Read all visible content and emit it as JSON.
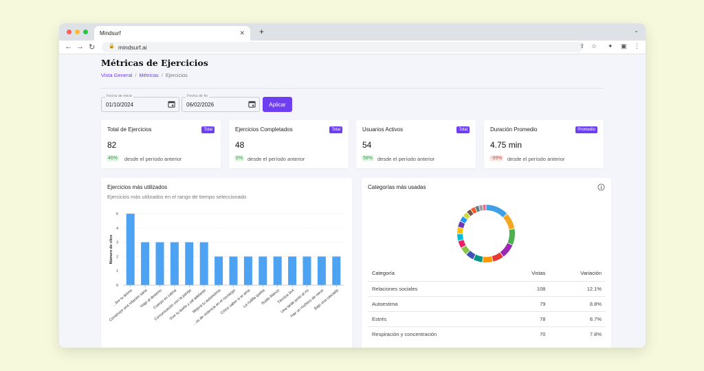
{
  "colors": {
    "accent": "#6d3ff0",
    "bar": "#4da3f2",
    "positive": "#2c9b43",
    "negative": "#d9433a",
    "background": "#f6f9dc"
  },
  "browser": {
    "tab_title": "Mindsurf",
    "url": "mindsurf.ai"
  },
  "page": {
    "title": "Métricas de Ejercicios",
    "breadcrumbs": [
      "Vista General",
      "Métricas",
      "Ejercicios"
    ]
  },
  "filters": {
    "start_label": "Fecha de inicio",
    "start_value": "01/10/2024",
    "end_label": "Fecha de fin",
    "end_value": "06/02/2026",
    "apply_label": "Aplicar"
  },
  "stats": [
    {
      "title": "Total de Ejercicios",
      "badge": "Total",
      "value": "82",
      "change": "46%",
      "trend": "up",
      "caption": "desde el período anterior"
    },
    {
      "title": "Ejercicios Completados",
      "badge": "Total",
      "value": "48",
      "change": "6%",
      "trend": "up",
      "caption": "desde el período anterior"
    },
    {
      "title": "Usuarios Activos",
      "badge": "Total",
      "value": "54",
      "change": "58%",
      "trend": "up",
      "caption": "desde el período anterior"
    },
    {
      "title": "Duración Promedio",
      "badge": "Promedio",
      "value": "4.75 min",
      "change": "-99%",
      "trend": "down",
      "caption": "desde el período anterior"
    }
  ],
  "bar_card": {
    "title": "Ejercicios más utilizados",
    "subtitle": "Ejercicios más utilizados en el rango de tiempo seleccionado"
  },
  "chart_data": {
    "type": "bar",
    "title": "Ejercicios más utilizados",
    "ylabel": "Número de clics",
    "xlabel": "",
    "ylim": [
      0,
      5
    ],
    "yticks": [
      0,
      1,
      2,
      3,
      4,
      5
    ],
    "categories": [
      "…bre tu ánimo",
      "Construye una relación sana",
      "Viaje al desierto",
      "Cuerpo en calma",
      "Comunicación con la pareja",
      "Vive tu duelo y sal adelante",
      "Mejora tu autoestima",
      "…os de violencia en el noviazgo",
      "Cómo saber si te ama",
      "La rodilla quieta",
      "Ruido blanco",
      "Técnica 3x4",
      "Una tarde junto al río",
      "Haz un muñeco de nieve",
      "Bajo una cascada"
    ],
    "values": [
      5,
      3,
      3,
      3,
      3,
      3,
      2,
      2,
      2,
      2,
      2,
      2,
      2,
      2,
      2
    ]
  },
  "categories_card": {
    "title": "Categorías más usadas",
    "donut_colors": [
      "#3fa0e8",
      "#f5a623",
      "#4caf50",
      "#9c27b0",
      "#e53935",
      "#ff9800",
      "#009688",
      "#3f51b5",
      "#8bc34a",
      "#e91e63",
      "#00bcd4",
      "#ffc107",
      "#673ab7",
      "#2196f3",
      "#cddc39",
      "#795548",
      "#ff5722",
      "#607d8b",
      "#9e9e9e",
      "#f06292"
    ],
    "donut_values": [
      12.1,
      8.8,
      8.7,
      7.8,
      6.0,
      5.5,
      5.0,
      4.5,
      4.2,
      4.0,
      3.8,
      3.5,
      3.3,
      3.0,
      2.8,
      2.6,
      2.4,
      2.2,
      2.0,
      1.8
    ],
    "table": {
      "headers": [
        "Categoría",
        "Vistas",
        "Variación"
      ],
      "rows": [
        [
          "Relaciones sociales",
          "108",
          "12.1%"
        ],
        [
          "Autoestima",
          "79",
          "8.8%"
        ],
        [
          "Estrés",
          "78",
          "8.7%"
        ],
        [
          "Respiración y concentración",
          "70",
          "7.8%"
        ]
      ]
    }
  }
}
